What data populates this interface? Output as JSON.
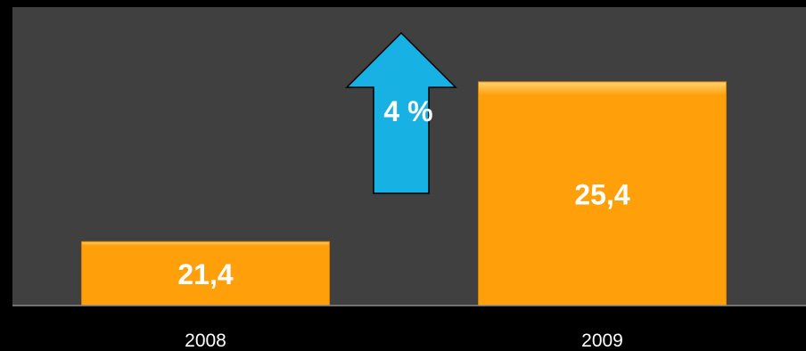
{
  "chart_data": {
    "type": "bar",
    "categories": [
      "2008",
      "2009"
    ],
    "values": [
      21.4,
      25.4
    ],
    "value_labels": [
      "21,4",
      "25,4"
    ],
    "title": "",
    "xlabel": "",
    "ylabel": "",
    "ylim": [
      19.8,
      26.6
    ],
    "grid": false,
    "legend": "none",
    "annotation": {
      "text": "4 %",
      "icon": "up-arrow-icon",
      "color": "#17B1E4"
    }
  },
  "colors": {
    "page_background": "#000000",
    "plot_background": "#404040",
    "bar_fill": "#FFA00A",
    "bar_highlight": "#FFD273",
    "bar_shadow": "#D97F00",
    "axis_line": "#8C8C8C",
    "arrow_fill": "#17B1E4",
    "arrow_stroke": "#000000",
    "text": "#FFFFFF"
  }
}
